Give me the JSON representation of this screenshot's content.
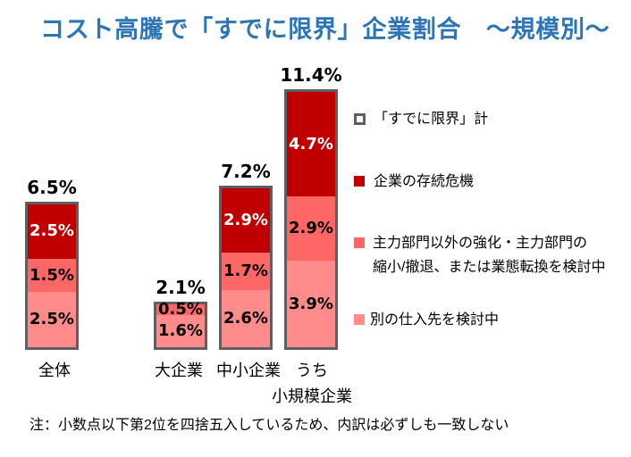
{
  "title": "コスト高騰で「すでに限界」企業割合　～規模別～",
  "colors": {
    "title": "#2E75B6",
    "outline": "#5F5F5F"
  },
  "chart_data": {
    "type": "bar",
    "stacked": true,
    "title": "コスト高騰で「すでに限界」企業割合　～規模別～",
    "xlabel": "",
    "ylabel": "",
    "unit": "%",
    "grid": false,
    "legend_position": "right",
    "categories": [
      "全体",
      "大企業",
      "中小企業",
      "うち小規模企業"
    ],
    "category_labels": [
      "全体",
      "大企業",
      "中小企業",
      "うち\n小規模企業"
    ],
    "totals": [
      6.5,
      2.1,
      7.2,
      11.4
    ],
    "total_labels": [
      "6.5%",
      "2.1%",
      "7.2%",
      "11.4%"
    ],
    "total_series_name": "「すでに限界」計",
    "series": [
      {
        "name": "企業の存続危機",
        "color": "#C00000",
        "values": [
          2.5,
          0,
          2.9,
          4.7
        ],
        "labels": [
          "2.5%",
          "",
          "2.9%",
          "4.7%"
        ]
      },
      {
        "name": "主力部門以外の強化・主力部門の縮小/撤退、または業態転換を検討中",
        "color": "#FF6666",
        "values": [
          1.5,
          0.5,
          1.7,
          2.9
        ],
        "labels": [
          "1.5%",
          "0.5%",
          "1.7%",
          "2.9%"
        ]
      },
      {
        "name": "別の仕入先を検討中",
        "color": "#FF8B8B",
        "values": [
          2.5,
          1.6,
          2.6,
          3.9
        ],
        "labels": [
          "2.5%",
          "1.6%",
          "2.6%",
          "3.9%"
        ]
      }
    ]
  },
  "legend": {
    "items": [
      {
        "lines": [
          "「すでに限界」計"
        ],
        "style": "hollow"
      },
      {
        "lines": [
          "企業の存続危機"
        ],
        "color": "#C00000"
      },
      {
        "lines": [
          "主力部門以外の強化・主力部門の",
          "縮小/撤退、または業態転換を検討中"
        ],
        "color": "#FF6666"
      },
      {
        "lines": [
          "別の仕入先を検討中"
        ],
        "color": "#FF8B8B"
      }
    ]
  },
  "note": "注：小数点以下第2位を四捨五入しているため、内訳は必ずしも一致しない"
}
